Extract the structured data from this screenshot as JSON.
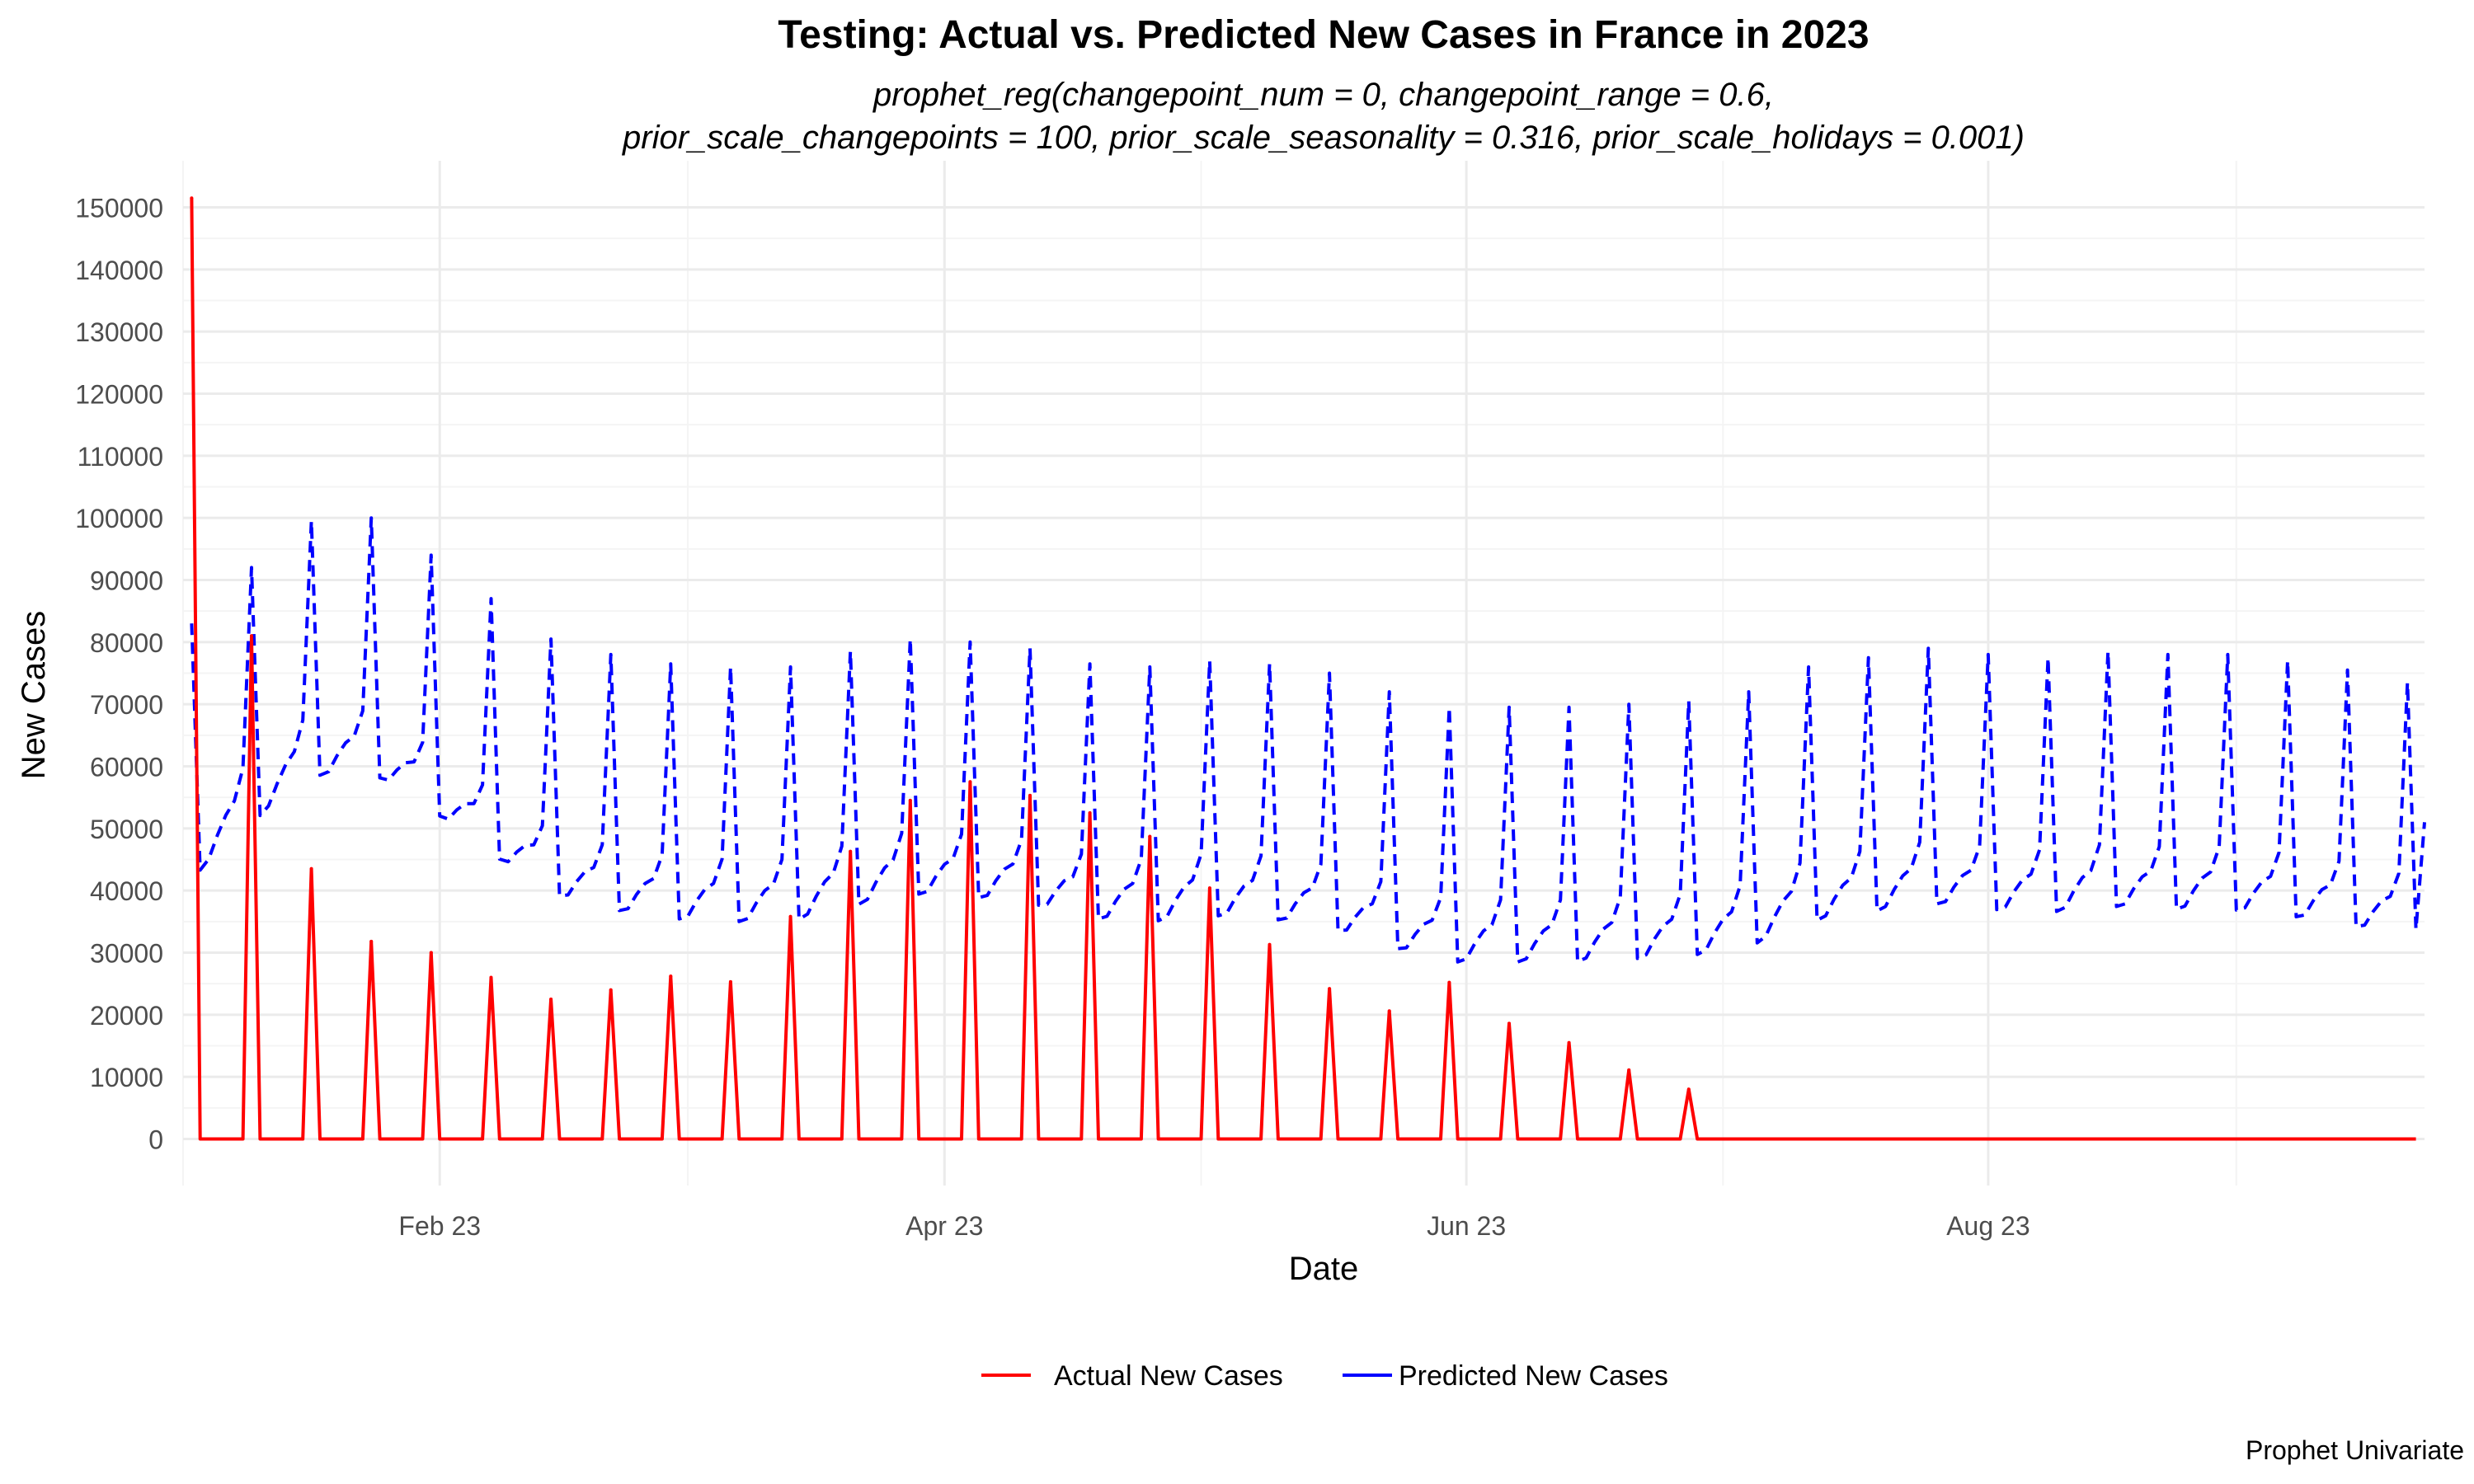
{
  "chart_data": {
    "type": "line",
    "title": "Testing: Actual vs. Predicted New Cases in France in 2023",
    "subtitle_lines": [
      "prophet_reg(changepoint_num = 0, changepoint_range = 0.6,",
      "prior_scale_changepoints = 100, prior_scale_seasonality = 0.316, prior_scale_holidays = 0.001)"
    ],
    "xlabel": "Date",
    "ylabel": "New Cases",
    "caption": "Prophet Univariate",
    "x_range": [
      "2023-01-02",
      "2023-09-21"
    ],
    "ylim": [
      -7500,
      157500
    ],
    "y_ticks": [
      0,
      10000,
      20000,
      30000,
      40000,
      50000,
      60000,
      70000,
      80000,
      90000,
      100000,
      110000,
      120000,
      130000,
      140000,
      150000
    ],
    "x_ticks": [
      {
        "date": "2023-02-01",
        "label": "Feb 23"
      },
      {
        "date": "2023-04-01",
        "label": "Apr 23"
      },
      {
        "date": "2023-06-01",
        "label": "Jun 23"
      },
      {
        "date": "2023-08-01",
        "label": "Aug 23"
      }
    ],
    "grid": true,
    "legend_position": "bottom",
    "series": [
      {
        "name": "Actual New Cases",
        "color": "#ff0000",
        "line_style": "solid",
        "first_date": "2023-01-03",
        "last_date": "2023-09-20",
        "default_value": 0,
        "points": [
          {
            "x": "2023-01-03",
            "y": 151500
          },
          {
            "x": "2023-01-10",
            "y": 81000
          },
          {
            "x": "2023-01-17",
            "y": 43500
          },
          {
            "x": "2023-01-24",
            "y": 31800
          },
          {
            "x": "2023-01-31",
            "y": 30000
          },
          {
            "x": "2023-02-07",
            "y": 26000
          },
          {
            "x": "2023-02-14",
            "y": 22500
          },
          {
            "x": "2023-02-21",
            "y": 24000
          },
          {
            "x": "2023-02-28",
            "y": 26200
          },
          {
            "x": "2023-03-07",
            "y": 25300
          },
          {
            "x": "2023-03-14",
            "y": 35800
          },
          {
            "x": "2023-03-21",
            "y": 46300
          },
          {
            "x": "2023-03-28",
            "y": 54500
          },
          {
            "x": "2023-04-04",
            "y": 57500
          },
          {
            "x": "2023-04-11",
            "y": 55300
          },
          {
            "x": "2023-04-18",
            "y": 52500
          },
          {
            "x": "2023-04-25",
            "y": 48700
          },
          {
            "x": "2023-05-02",
            "y": 40400
          },
          {
            "x": "2023-05-09",
            "y": 31300
          },
          {
            "x": "2023-05-16",
            "y": 24200
          },
          {
            "x": "2023-05-23",
            "y": 20600
          },
          {
            "x": "2023-05-30",
            "y": 25200
          },
          {
            "x": "2023-06-06",
            "y": 18600
          },
          {
            "x": "2023-06-13",
            "y": 15500
          },
          {
            "x": "2023-06-20",
            "y": 11100
          },
          {
            "x": "2023-06-27",
            "y": 8000
          }
        ]
      },
      {
        "name": "Predicted New Cases",
        "color": "#0000ff",
        "line_style": "dashed",
        "first_date": "2023-01-03",
        "last_date": "2023-09-21",
        "weekly_offsets": [
          -13000,
          -12500,
          -10000,
          -8000,
          -7000,
          -3000,
          28000
        ],
        "weekly_peak_dates": [
          "2023-01-10",
          "2023-01-17",
          "2023-01-24",
          "2023-01-31",
          "2023-02-07",
          "2023-02-14",
          "2023-02-21",
          "2023-02-28",
          "2023-03-07",
          "2023-03-14",
          "2023-03-21",
          "2023-03-28",
          "2023-04-04",
          "2023-04-11",
          "2023-04-18",
          "2023-04-25",
          "2023-05-02",
          "2023-05-09",
          "2023-05-16",
          "2023-05-23",
          "2023-05-30",
          "2023-06-06",
          "2023-06-13",
          "2023-06-20",
          "2023-06-27",
          "2023-07-04",
          "2023-07-11",
          "2023-07-18",
          "2023-07-25",
          "2023-08-01",
          "2023-08-08",
          "2023-08-15",
          "2023-08-22",
          "2023-08-29",
          "2023-09-05",
          "2023-09-12",
          "2023-09-19"
        ],
        "weekly_peaks": [
          92000,
          99500,
          100000,
          94000,
          87000,
          80500,
          78000,
          76500,
          76000,
          76000,
          78500,
          80500,
          80000,
          79000,
          76500,
          76000,
          77000,
          76500,
          75000,
          72000,
          69500,
          69500,
          69500,
          70000,
          70500,
          72000,
          76000,
          77500,
          79000,
          78000,
          77500,
          78500,
          78000,
          78000,
          77000,
          75500,
          73500
        ],
        "first_value": 83000,
        "last_value": 51000
      }
    ]
  }
}
